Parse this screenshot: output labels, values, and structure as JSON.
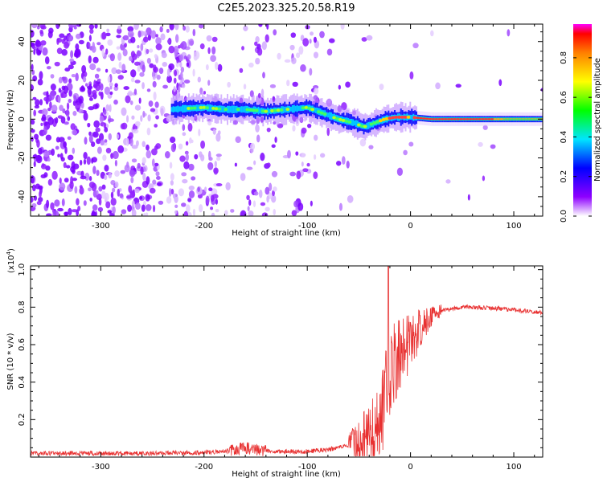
{
  "figure": {
    "title": "C2E5.2023.325.20.58.R19"
  },
  "chart_data": [
    {
      "type": "heatmap",
      "xlabel": "Height of straight line (km)",
      "ylabel": "Frequency (Hz)",
      "xlim": [
        -368,
        128
      ],
      "ylim": [
        -50,
        49
      ],
      "xticks": [
        -300,
        -200,
        -100,
        0,
        100
      ],
      "yticks": [
        -40,
        -20,
        0,
        20,
        40
      ],
      "colorbar": {
        "label": "Normalized spectral amplitude",
        "range": [
          0,
          0.97
        ],
        "ticks": [
          0.0,
          0.2,
          0.4,
          0.6,
          0.8
        ]
      },
      "ridge": {
        "points": [
          [
            -232,
            5
          ],
          [
            -200,
            6
          ],
          [
            -180,
            5
          ],
          [
            -160,
            5
          ],
          [
            -140,
            4
          ],
          [
            -120,
            5
          ],
          [
            -100,
            6
          ],
          [
            -85,
            3
          ],
          [
            -70,
            0
          ],
          [
            -55,
            -2
          ],
          [
            -45,
            -4
          ],
          [
            -35,
            -2
          ],
          [
            -25,
            0
          ],
          [
            -15,
            1
          ],
          [
            0,
            1
          ],
          [
            20,
            0
          ],
          [
            60,
            0
          ],
          [
            128,
            0
          ]
        ]
      },
      "noise_bands_km": [
        [
          -368,
          -185
        ],
        [
          -165,
          -130
        ],
        [
          -115,
          -90
        ]
      ]
    },
    {
      "type": "line",
      "xlabel": "Height of straight line (km)",
      "ylabel": "SNR (10 * v/v)",
      "y_multiplier": "(x10⁴)",
      "exp": "4",
      "xlim": [
        -368,
        128
      ],
      "ylim": [
        0.0,
        1.02
      ],
      "xticks": [
        -300,
        -200,
        -100,
        0,
        100
      ],
      "yticks": [
        0.2,
        0.4,
        0.6,
        0.8,
        1.0
      ],
      "series": [
        {
          "color": "#e83030",
          "x": [
            -368,
            -300,
            -250,
            -200,
            -180,
            -170,
            -160,
            -150,
            -130,
            -100,
            -80,
            -60,
            -50,
            -45,
            -40,
            -35,
            -30,
            -25,
            -22,
            -18,
            -15,
            -10,
            -5,
            0,
            5,
            10,
            20,
            30,
            40,
            50,
            60,
            80,
            100,
            128
          ],
          "y": [
            0.02,
            0.02,
            0.02,
            0.025,
            0.03,
            0.04,
            0.05,
            0.04,
            0.03,
            0.03,
            0.04,
            0.06,
            0.08,
            0.1,
            0.12,
            0.16,
            0.22,
            0.3,
            0.4,
            0.45,
            0.5,
            0.55,
            0.58,
            0.62,
            0.65,
            0.7,
            0.75,
            0.78,
            0.79,
            0.8,
            0.8,
            0.795,
            0.785,
            0.77
          ]
        }
      ]
    }
  ]
}
